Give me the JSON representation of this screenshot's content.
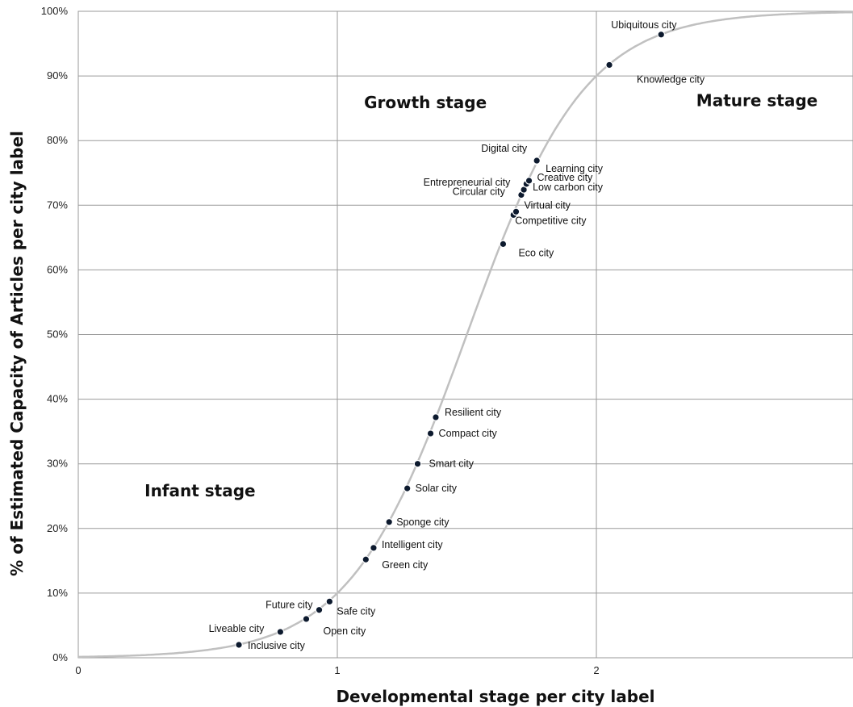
{
  "chart_data": {
    "type": "scatter",
    "xlabel": "Developmental stage per city label",
    "ylabel": "% of Estimated Capacity of Articles per city label",
    "xlim": [
      0,
      3
    ],
    "ylim": [
      0,
      100
    ],
    "x_ticks": [
      "0",
      "1",
      "2"
    ],
    "y_ticks": [
      "0%",
      "10%",
      "20%",
      "30%",
      "40%",
      "50%",
      "60%",
      "70%",
      "80%",
      "90%",
      "100%"
    ],
    "grid": true,
    "curve": "logistic S-curve (y = 100 / (1 + 9^(3 - 2x)))",
    "stages": [
      {
        "label": "Infant stage",
        "x": 0.47,
        "y": 25
      },
      {
        "label": "Growth stage",
        "x": 1.34,
        "y": 85
      },
      {
        "label": "Mature stage",
        "x": 2.62,
        "y": 85.3
      }
    ],
    "points": [
      {
        "label": "Inclusive city",
        "x": 0.62,
        "y": 2.0
      },
      {
        "label": "Liveable city",
        "x": 0.78,
        "y": 4.0
      },
      {
        "label": "Open city",
        "x": 0.88,
        "y": 6.0
      },
      {
        "label": "Future city",
        "x": 0.93,
        "y": 7.4
      },
      {
        "label": "Safe city",
        "x": 0.97,
        "y": 8.7
      },
      {
        "label": "Green city",
        "x": 1.11,
        "y": 15.2
      },
      {
        "label": "Intelligent city",
        "x": 1.14,
        "y": 17.0
      },
      {
        "label": "Sponge city",
        "x": 1.2,
        "y": 21.0
      },
      {
        "label": "Solar city",
        "x": 1.27,
        "y": 26.2
      },
      {
        "label": "Smart city",
        "x": 1.31,
        "y": 30.0
      },
      {
        "label": "Compact city",
        "x": 1.36,
        "y": 34.7
      },
      {
        "label": "Resilient city",
        "x": 1.38,
        "y": 37.2
      },
      {
        "label": "Eco city",
        "x": 1.64,
        "y": 64.0
      },
      {
        "label": "Competitive city",
        "x": 1.68,
        "y": 68.5
      },
      {
        "label": "Virtual city",
        "x": 1.69,
        "y": 69.0
      },
      {
        "label": "Circular city",
        "x": 1.71,
        "y": 71.6
      },
      {
        "label": "Low carbon city",
        "x": 1.72,
        "y": 72.4
      },
      {
        "label": "Entrepreneurial city",
        "x": 1.73,
        "y": 73.3
      },
      {
        "label": "Creative city",
        "x": 1.74,
        "y": 73.8
      },
      {
        "label": "Learning city",
        "x": 1.77,
        "y": 76.8
      },
      {
        "label": "Digital city",
        "x": 1.77,
        "y": 76.9
      },
      {
        "label": "Knowledge city",
        "x": 2.05,
        "y": 91.7
      },
      {
        "label": "Ubiquitous city",
        "x": 2.25,
        "y": 96.4
      }
    ]
  }
}
